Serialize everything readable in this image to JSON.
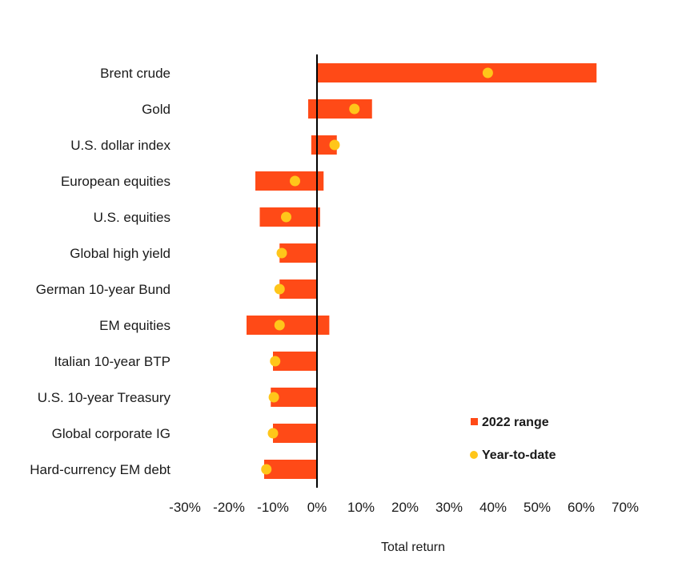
{
  "chart_data": {
    "type": "bar",
    "subtype": "floating-range-with-markers",
    "categories": [
      "Brent crude",
      "Gold",
      "U.S. dollar index",
      "European equities",
      "U.S. equities",
      "Global high yield",
      "German 10-year Bund",
      "EM equities",
      "Italian 10-year BTP",
      "U.S. 10-year Treasury",
      "Global corporate IG",
      "Hard-currency EM debt"
    ],
    "series": [
      {
        "name": "2022 range",
        "kind": "range",
        "color": "#ff4a17",
        "values": [
          [
            0,
            63.5
          ],
          [
            -2,
            12.5
          ],
          [
            -1.3,
            4.5
          ],
          [
            -14,
            1.5
          ],
          [
            -13,
            0.7
          ],
          [
            -8.5,
            0
          ],
          [
            -8.5,
            0
          ],
          [
            -16,
            2.8
          ],
          [
            -10,
            0
          ],
          [
            -10.5,
            0
          ],
          [
            -10,
            0
          ],
          [
            -12,
            0
          ]
        ]
      },
      {
        "name": "Year-to-date",
        "kind": "marker",
        "color": "#ffc61a",
        "values": [
          38.8,
          8.5,
          4,
          -5,
          -7,
          -8,
          -8.5,
          -8.5,
          -9.5,
          -9.8,
          -10,
          -11.5
        ]
      }
    ],
    "x_ticks": [
      "-30%",
      "-20%",
      "-10%",
      "0%",
      "10%",
      "20%",
      "30%",
      "40%",
      "50%",
      "60%",
      "70%"
    ],
    "x_tick_values": [
      -30,
      -20,
      -10,
      0,
      10,
      20,
      30,
      40,
      50,
      60,
      70
    ],
    "xlim": [
      -30,
      70
    ],
    "xlabel": "Total return",
    "ylabel": "",
    "title": "",
    "legend_position": "bottom-right",
    "grid": false,
    "zero_line": true
  }
}
